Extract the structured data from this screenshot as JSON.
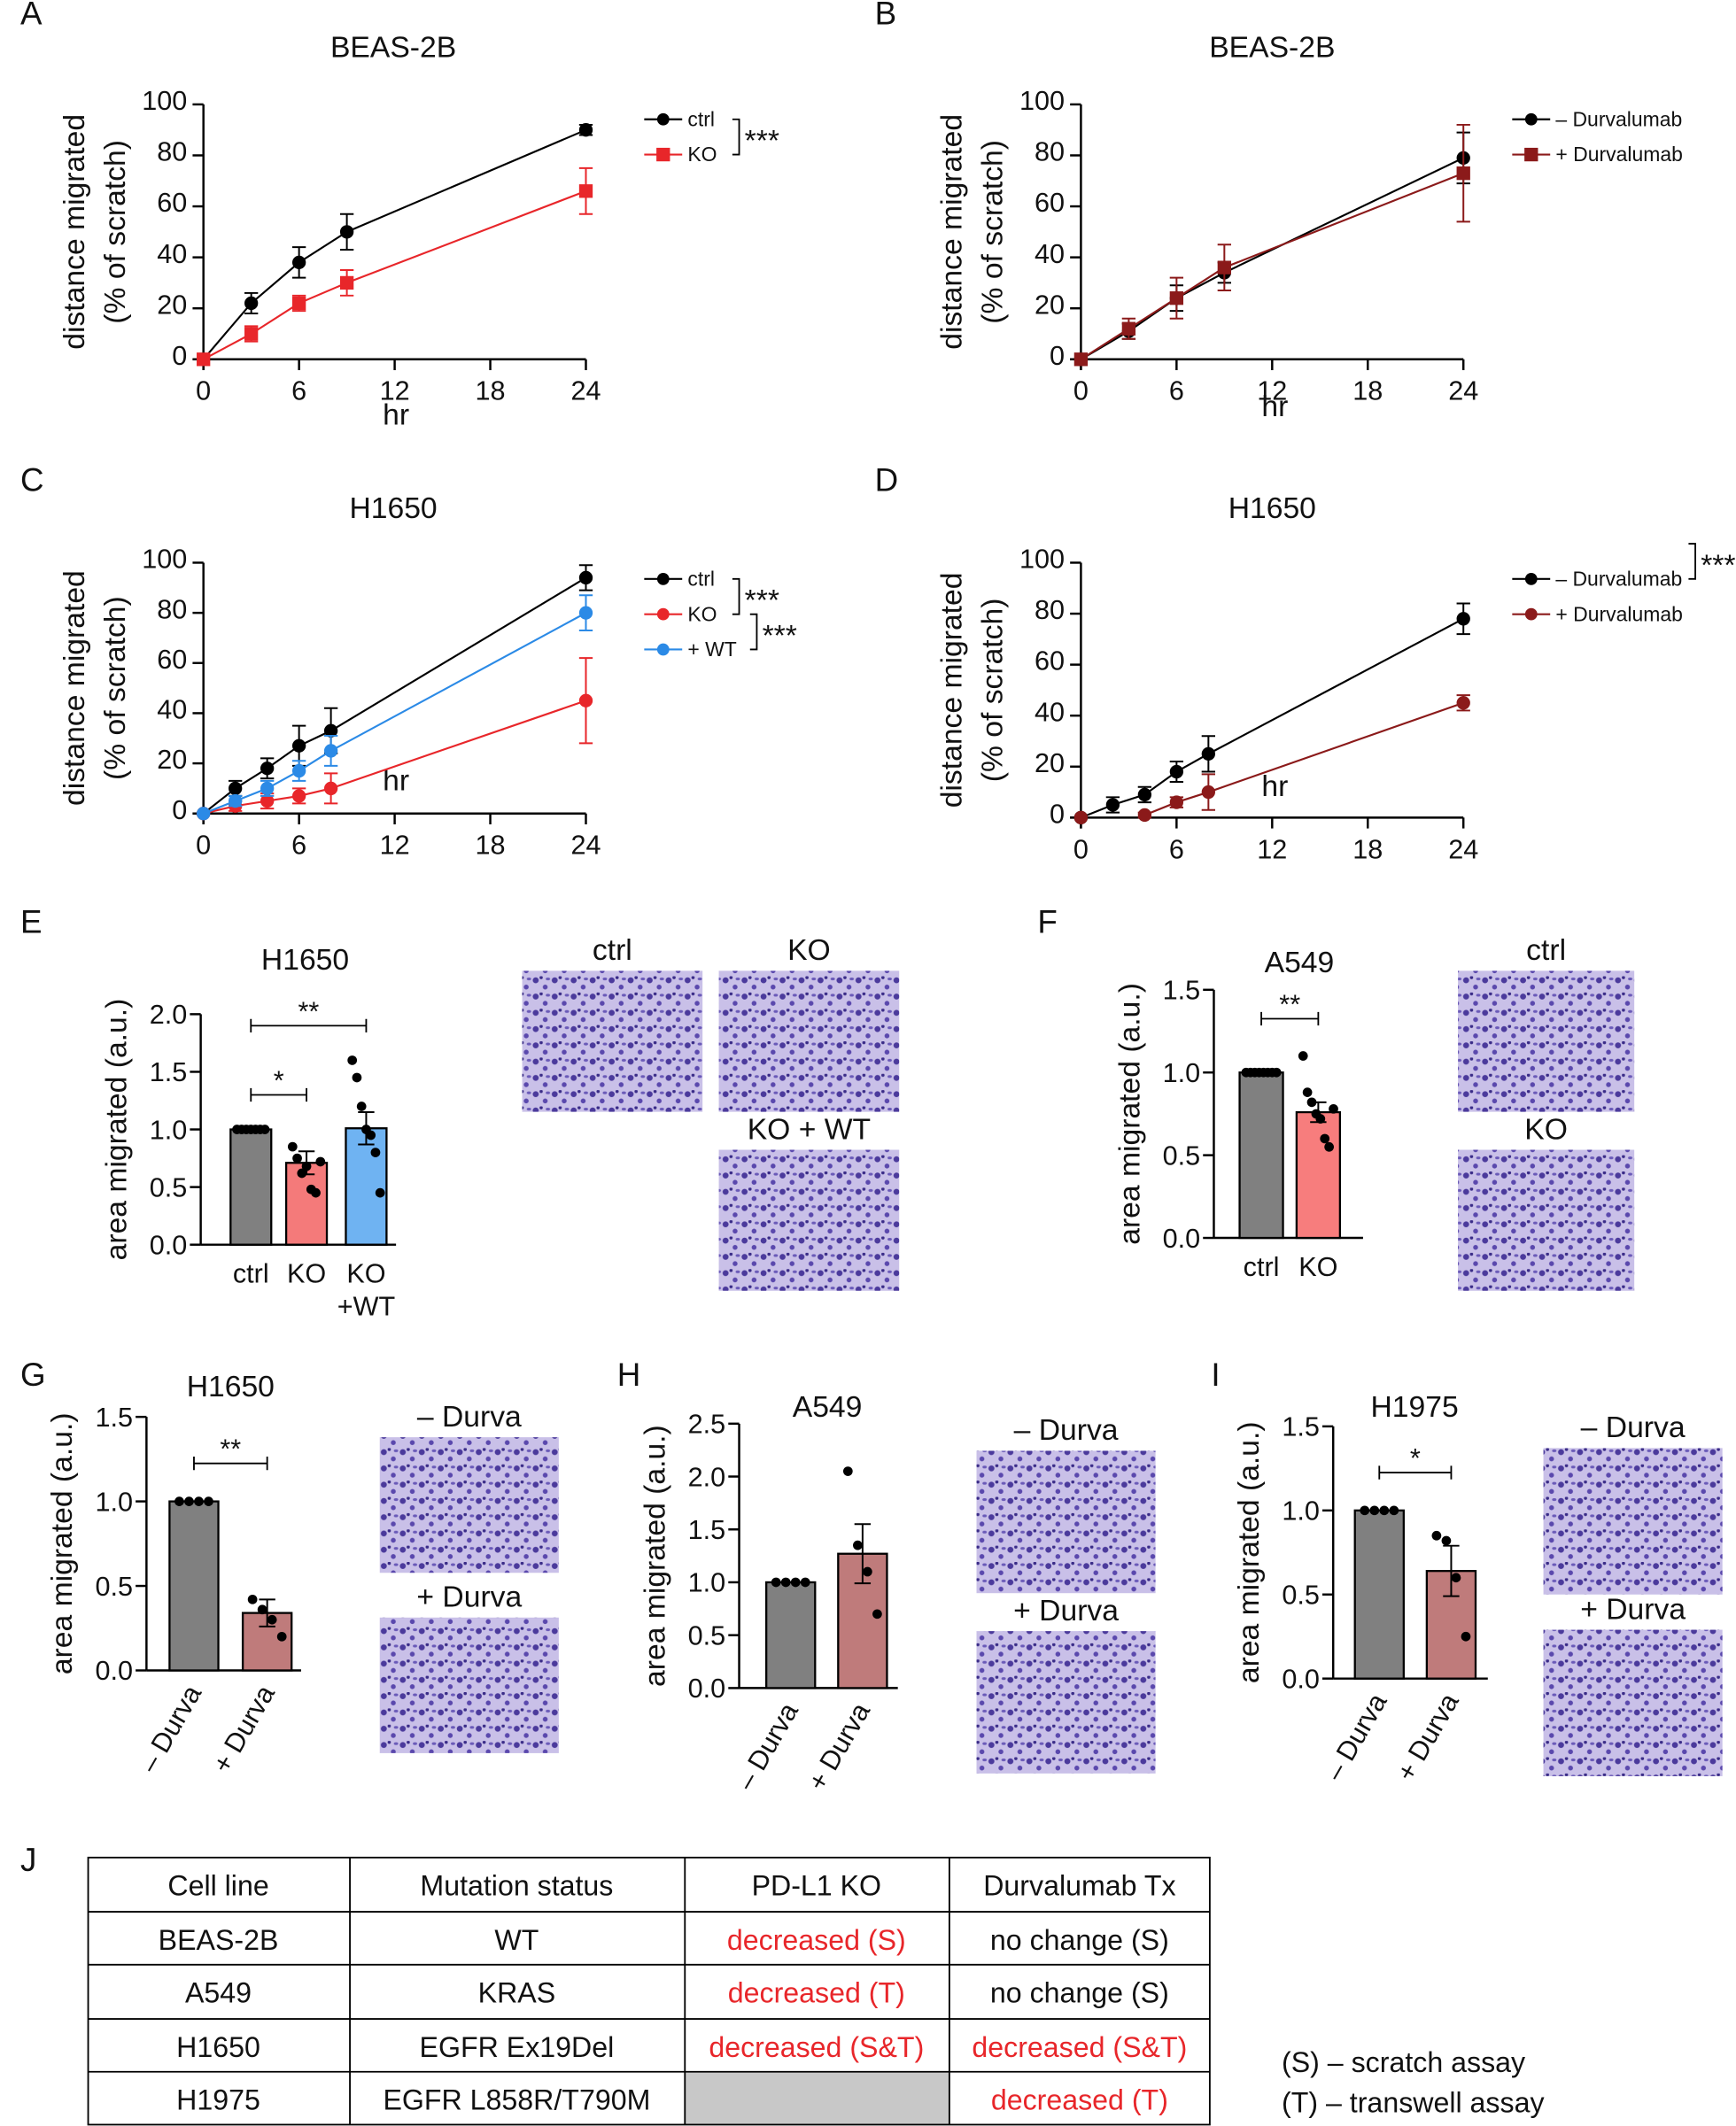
{
  "chart_data": [
    {
      "type": "line",
      "letter": "A",
      "title": "BEAS-2B",
      "xlabel": "hr",
      "ylabel": [
        "distance migrated",
        "(% of scratch)"
      ],
      "x": [
        0,
        3,
        6,
        9,
        24
      ],
      "xlim": [
        0,
        24
      ],
      "xticks": [
        0,
        6,
        12,
        18,
        24
      ],
      "ylim": [
        0,
        100
      ],
      "yticks": [
        0,
        20,
        40,
        60,
        80,
        100
      ],
      "series": [
        {
          "name": "ctrl",
          "color": "#000000",
          "marker": "circle",
          "values": [
            0,
            22,
            38,
            50,
            90
          ],
          "errors": [
            0,
            4,
            6,
            7,
            2
          ]
        },
        {
          "name": "KO",
          "color": "#e8262a",
          "marker": "square",
          "values": [
            0,
            10,
            22,
            30,
            66
          ],
          "errors": [
            0,
            3,
            3,
            5,
            9
          ]
        }
      ],
      "annotations": [
        {
          "text": "***",
          "series": [
            0,
            1
          ]
        }
      ]
    },
    {
      "type": "line",
      "letter": "B",
      "title": "BEAS-2B",
      "xlabel": "hr",
      "ylabel": [
        "distance migrated",
        "(% of scratch)"
      ],
      "x": [
        0,
        3,
        6,
        9,
        24
      ],
      "xlim": [
        0,
        24
      ],
      "xticks": [
        0,
        6,
        12,
        18,
        24
      ],
      "ylim": [
        0,
        100
      ],
      "yticks": [
        0,
        20,
        40,
        60,
        80,
        100
      ],
      "series": [
        {
          "name": "– Durvalumab",
          "color": "#000000",
          "marker": "circle",
          "values": [
            0,
            11,
            24,
            34,
            79
          ],
          "errors": [
            0,
            3,
            5,
            4,
            10
          ]
        },
        {
          "name": "+ Durvalumab",
          "color": "#8b1a1a",
          "marker": "square",
          "values": [
            0,
            12,
            24,
            36,
            73
          ],
          "errors": [
            0,
            4,
            8,
            9,
            19
          ]
        }
      ],
      "annotations": []
    },
    {
      "type": "line",
      "letter": "C",
      "title": "H1650",
      "xlabel": "hr",
      "ylabel": [
        "distance migrated",
        "(% of scratch)"
      ],
      "x": [
        0,
        2,
        4,
        6,
        8,
        24
      ],
      "xlim": [
        0,
        24
      ],
      "xticks": [
        0,
        6,
        12,
        18,
        24
      ],
      "ylim": [
        0,
        100
      ],
      "yticks": [
        0,
        20,
        40,
        60,
        80,
        100
      ],
      "series": [
        {
          "name": "ctrl",
          "color": "#000000",
          "marker": "circle",
          "values": [
            0,
            10,
            18,
            27,
            33,
            94
          ],
          "errors": [
            0,
            3,
            4,
            8,
            9,
            5
          ]
        },
        {
          "name": "KO",
          "color": "#e8262a",
          "marker": "circle",
          "values": [
            0,
            3,
            5,
            7,
            10,
            45
          ],
          "errors": [
            0,
            2,
            3,
            3,
            6,
            17
          ]
        },
        {
          "name": "+ WT",
          "color": "#2b8ae6",
          "marker": "circle",
          "values": [
            0,
            5,
            10,
            17,
            25,
            80
          ],
          "errors": [
            0,
            2,
            3,
            4,
            6,
            7
          ]
        }
      ],
      "annotations": [
        {
          "text": "***",
          "series": [
            0,
            1
          ]
        },
        {
          "text": "***",
          "series": [
            1,
            2
          ]
        }
      ]
    },
    {
      "type": "line",
      "letter": "D",
      "title": "H1650",
      "xlabel": "hr",
      "ylabel": [
        "distance migrated",
        "(% of scratch)"
      ],
      "x": [
        0,
        2,
        4,
        6,
        8,
        24
      ],
      "xlim": [
        0,
        24
      ],
      "xticks": [
        0,
        6,
        12,
        18,
        24
      ],
      "ylim": [
        0,
        100
      ],
      "yticks": [
        0,
        20,
        40,
        60,
        80,
        100
      ],
      "series": [
        {
          "name": "– Durvalumab",
          "color": "#000000",
          "marker": "circle",
          "values": [
            0,
            5,
            9,
            18,
            25,
            78
          ],
          "errors": [
            0,
            3,
            3,
            4,
            7,
            6
          ]
        },
        {
          "name": "+ Durvalumab",
          "color": "#8b1a1a",
          "marker": "circle",
          "values": [
            0,
            null,
            1,
            6,
            10,
            45
          ],
          "errors": [
            0,
            null,
            1,
            2,
            7,
            3
          ]
        }
      ],
      "annotations": [
        {
          "text": "***",
          "series": [
            0,
            1
          ]
        }
      ]
    },
    {
      "type": "bar",
      "letter": "E",
      "title": "H1650",
      "ylabel": "area migrated (a.u.)",
      "categories": [
        "ctrl",
        "KO",
        [
          "KO",
          "+WT"
        ]
      ],
      "values": [
        1.0,
        0.71,
        1.01
      ],
      "errors": [
        0,
        0.1,
        0.14
      ],
      "colors": [
        "#808080",
        "#f47a7a",
        "#6fb3f2"
      ],
      "points": [
        [
          1,
          1,
          1,
          1,
          1,
          1,
          1
        ],
        [
          0.85,
          0.75,
          0.62,
          0.68,
          0.48,
          0.45,
          0.72
        ],
        [
          1.6,
          1.45,
          1.2,
          1.0,
          0.95,
          0.8,
          0.45
        ]
      ],
      "ylim": [
        0,
        2.0
      ],
      "yticks": [
        {
          "value": 0,
          "label": "0.0"
        },
        {
          "value": 0.5,
          "label": "0.5"
        },
        {
          "value": 1,
          "label": "1.0"
        },
        1.5,
        {
          "value": 2,
          "label": "2.0"
        }
      ],
      "annotations": [
        {
          "text": "*",
          "bars": [
            0,
            1
          ]
        },
        {
          "text": "**",
          "bars": [
            0,
            2
          ]
        }
      ],
      "image_labels": [
        "ctrl",
        "KO",
        "KO + WT"
      ]
    },
    {
      "type": "bar",
      "letter": "F",
      "title": "A549",
      "ylabel": "area migrated (a.u.)",
      "categories": [
        "ctrl",
        "KO"
      ],
      "values": [
        1.0,
        0.76
      ],
      "errors": [
        0,
        0.06
      ],
      "colors": [
        "#808080",
        "#f77d7d"
      ],
      "points": [
        [
          1,
          1,
          1,
          1,
          1,
          1,
          1,
          1
        ],
        [
          1.1,
          0.88,
          0.82,
          0.75,
          0.72,
          0.6,
          0.55,
          0.78
        ]
      ],
      "ylim": [
        0,
        1.5
      ],
      "yticks": [
        {
          "value": 0,
          "label": "0.0"
        },
        {
          "value": 0.5,
          "label": "0.5"
        },
        {
          "value": 1,
          "label": "1.0"
        },
        1.5
      ],
      "annotations": [
        {
          "text": "**",
          "bars": [
            0,
            1
          ]
        }
      ],
      "image_labels": [
        "ctrl",
        "KO"
      ]
    },
    {
      "type": "bar",
      "letter": "G",
      "title": "H1650",
      "ylabel": "area migrated (a.u.)",
      "categories": [
        "– Durva",
        "+ Durva"
      ],
      "values": [
        1.0,
        0.34
      ],
      "errors": [
        0,
        0.08
      ],
      "colors": [
        "#808080",
        "#bf7b7b"
      ],
      "points": [
        [
          1,
          1,
          1,
          1
        ],
        [
          0.42,
          0.36,
          0.3,
          0.2
        ]
      ],
      "ylim": [
        0,
        1.5
      ],
      "yticks": [
        {
          "value": 0,
          "label": "0.0"
        },
        {
          "value": 0.5,
          "label": "0.5"
        },
        {
          "value": 1,
          "label": "1.0"
        },
        1.5
      ],
      "annotations": [
        {
          "text": "**",
          "bars": [
            0,
            1
          ]
        }
      ],
      "image_labels": [
        "– Durva",
        "+ Durva"
      ]
    },
    {
      "type": "bar",
      "letter": "H",
      "title": "A549",
      "ylabel": "area migrated (a.u.)",
      "categories": [
        "– Durva",
        "+ Durva"
      ],
      "values": [
        1.0,
        1.27
      ],
      "errors": [
        0,
        0.28
      ],
      "colors": [
        "#808080",
        "#bf7b7b"
      ],
      "points": [
        [
          1,
          1,
          1,
          1
        ],
        [
          2.05,
          1.35,
          1.1,
          0.7
        ]
      ],
      "ylim": [
        0,
        2.5
      ],
      "yticks": [
        {
          "value": 0,
          "label": "0.0"
        },
        {
          "value": 0.5,
          "label": "0.5"
        },
        {
          "value": 1,
          "label": "1.0"
        },
        1.5,
        {
          "value": 2,
          "label": "2.0"
        },
        2.5
      ],
      "annotations": [],
      "image_labels": [
        "– Durva",
        "+ Durva"
      ]
    },
    {
      "type": "bar",
      "letter": "I",
      "title": "H1975",
      "ylabel": "area migrated (a.u.)",
      "categories": [
        "– Durva",
        "+ Durva"
      ],
      "values": [
        1.0,
        0.64
      ],
      "errors": [
        0,
        0.15
      ],
      "colors": [
        "#808080",
        "#bf7b7b"
      ],
      "points": [
        [
          1,
          1,
          1,
          1
        ],
        [
          0.85,
          0.82,
          0.6,
          0.25
        ]
      ],
      "ylim": [
        0,
        1.5
      ],
      "yticks": [
        {
          "value": 0,
          "label": "0.0"
        },
        {
          "value": 0.5,
          "label": "0.5"
        },
        {
          "value": 1,
          "label": "1.0"
        },
        1.5
      ],
      "annotations": [
        {
          "text": "*",
          "bars": [
            0,
            1
          ]
        }
      ],
      "image_labels": [
        "– Durva",
        "+ Durva"
      ]
    }
  ],
  "table": {
    "letter": "J",
    "header": [
      "Cell line",
      "Mutation status",
      "PD-L1 KO",
      "Durvalumab Tx"
    ],
    "rows": [
      [
        "BEAS-2B",
        "WT",
        "decreased (S)",
        "no change (S)"
      ],
      [
        "A549",
        "KRAS",
        "decreased (T)",
        "no change (S)"
      ],
      [
        "H1650",
        "EGFR Ex19Del",
        "decreased (S&T)",
        "decreased (S&T)"
      ],
      [
        "H1975",
        "EGFR L858R/T790M",
        null,
        "decreased (T)"
      ]
    ],
    "notes": [
      "(S) – scratch assay",
      "(T) –  transwell assay"
    ]
  }
}
